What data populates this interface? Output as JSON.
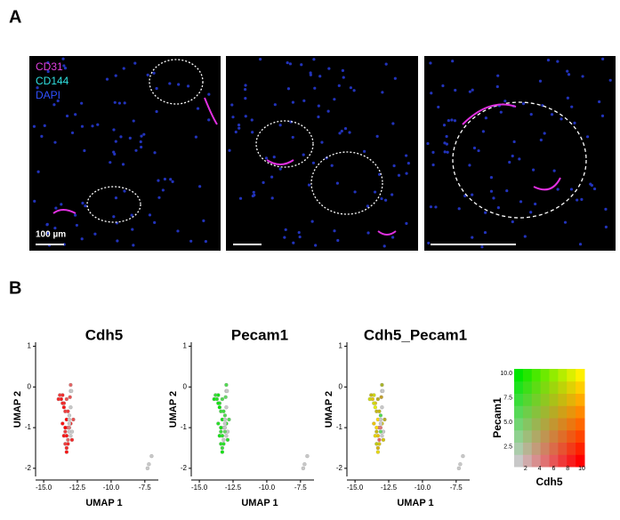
{
  "panel_a": {
    "label": "A",
    "channels": [
      "CD31",
      "CD144",
      "DAPI"
    ],
    "scale_label": "100 µm"
  },
  "panel_b": {
    "label": "B"
  },
  "chart_data": {
    "type": "scatter",
    "titles": [
      "Cdh5",
      "Pecam1",
      "Cdh5_Pecam1"
    ],
    "xlabel": "UMAP 1",
    "ylabel": "UMAP 2",
    "xlim": [
      -15.6,
      -6.5
    ],
    "ylim": [
      -2.2,
      1.1
    ],
    "xticks": [
      {
        "value": -15,
        "label": "-15.0"
      },
      -12.5,
      {
        "value": -10,
        "label": "-10.0"
      },
      -7.5
    ],
    "yticks": [
      1,
      0,
      -1,
      -2
    ],
    "x": [
      -13.6,
      -13.5,
      -13.4,
      -13.3,
      -13.2,
      -13.1,
      -13.0,
      -12.9,
      -13.5,
      -13.4,
      -13.3,
      -13.2,
      -13.1,
      -13.0,
      -12.8,
      -13.6,
      -13.4,
      -13.2,
      -13.0,
      -12.9,
      -13.5,
      -13.3,
      -13.1,
      -13.4,
      -13.2,
      -13.0,
      -13.3,
      -13.1,
      -13.6,
      -13.7,
      -13.8,
      -13.9,
      -13.0,
      -12.95,
      -13.05,
      -13.1,
      -7.2,
      -7.0,
      -7.3,
      -13.3
    ],
    "y": [
      -0.2,
      -0.4,
      -0.6,
      -0.8,
      -1.0,
      -0.7,
      -0.9,
      -1.1,
      -1.2,
      -1.4,
      -1.5,
      -1.3,
      -1.1,
      -0.5,
      -0.8,
      -0.9,
      -1.0,
      -0.6,
      -1.2,
      -1.3,
      -0.5,
      -0.3,
      -0.9,
      -1.1,
      -1.4,
      -0.1,
      -1.6,
      -0.8,
      -0.4,
      -0.3,
      -0.2,
      -0.3,
      0.05,
      -0.1,
      -0.25,
      -1.0,
      -1.9,
      -1.7,
      -2.0,
      -1.2
    ],
    "cdh5": [
      8,
      9,
      7,
      10,
      6,
      0,
      8,
      0,
      9,
      7,
      8,
      5,
      0,
      0,
      6,
      9,
      10,
      7,
      0,
      8,
      9,
      6,
      0,
      7,
      8,
      0,
      9,
      0,
      8,
      9,
      7,
      8,
      5,
      0,
      6,
      4,
      0,
      0,
      0,
      9
    ],
    "pecam1": [
      9,
      8,
      7,
      9,
      0,
      6,
      8,
      0,
      9,
      8,
      7,
      0,
      5,
      0,
      6,
      8,
      9,
      7,
      0,
      8,
      10,
      6,
      0,
      7,
      8,
      0,
      9,
      0,
      9,
      8,
      7,
      9,
      6,
      0,
      5,
      0,
      0,
      0,
      0,
      8
    ],
    "legend": {
      "xlabel": "Cdh5",
      "ylabel": "Pecam1",
      "xlim": [
        0,
        10
      ],
      "ylim": [
        0,
        10
      ],
      "xticks": [
        2,
        4,
        6,
        8,
        10
      ],
      "yticks": [
        2.5,
        {
          "value": 5,
          "label": "5.0"
        },
        7.5,
        {
          "value": 10,
          "label": "10.0"
        }
      ]
    }
  }
}
